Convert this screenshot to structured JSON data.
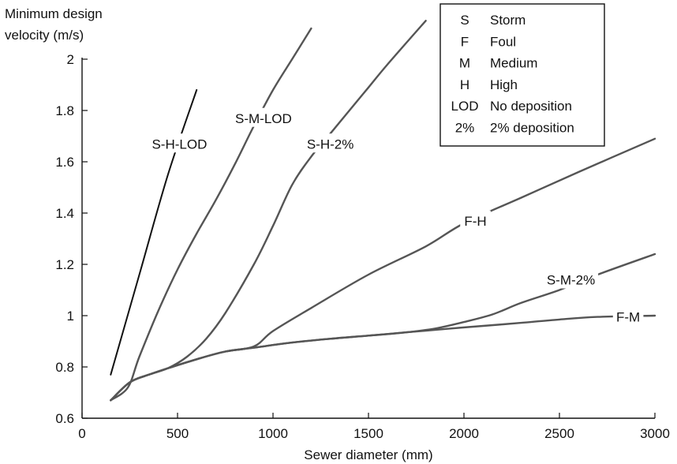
{
  "chart_data": {
    "type": "line",
    "title": "",
    "ylabel_lines": [
      "Minimum design",
      "velocity (m/s)"
    ],
    "xlabel": "Sewer diameter (mm)",
    "xlim": [
      0,
      3000
    ],
    "ylim": [
      0.6,
      2.0
    ],
    "x_ticks": [
      0,
      500,
      1000,
      1500,
      2000,
      2500,
      3000
    ],
    "y_ticks": [
      0.6,
      0.8,
      1,
      1.2,
      1.4,
      1.6,
      1.8,
      2
    ],
    "x_tick_labels": [
      "0",
      "500",
      "1000",
      "1500",
      "2000",
      "2500",
      "3000"
    ],
    "y_tick_labels": [
      "0.6",
      "0.8",
      "1",
      "1.2",
      "1.4",
      "1.6",
      "1.8",
      "2"
    ],
    "grid": false,
    "legend": {
      "position": "top-right",
      "entries": [
        {
          "code": "S",
          "meaning": "Storm"
        },
        {
          "code": "F",
          "meaning": "Foul"
        },
        {
          "code": "M",
          "meaning": "Medium"
        },
        {
          "code": "H",
          "meaning": "High"
        },
        {
          "code": "LOD",
          "meaning": "No deposition"
        },
        {
          "code": "2%",
          "meaning": "2% deposition"
        }
      ]
    },
    "series": [
      {
        "name": "S-H-LOD",
        "color": "#111111",
        "x": [
          150,
          300,
          450,
          600
        ],
        "y": [
          0.77,
          1.16,
          1.55,
          1.88
        ]
      },
      {
        "name": "S-M-LOD",
        "color": "#555555",
        "x": [
          150,
          240,
          300,
          400,
          500,
          600,
          700,
          800,
          900,
          1000,
          1100,
          1200
        ],
        "y": [
          0.67,
          0.72,
          0.84,
          1.02,
          1.18,
          1.32,
          1.45,
          1.59,
          1.74,
          1.88,
          2.0,
          2.12
        ]
      },
      {
        "name": "S-H-2%",
        "color": "#555555",
        "x": [
          150,
          250,
          350,
          450,
          550,
          650,
          750,
          900,
          1000,
          1100,
          1200,
          1300,
          1400,
          1500,
          1600,
          1800
        ],
        "y": [
          0.67,
          0.74,
          0.77,
          0.795,
          0.84,
          0.91,
          1.01,
          1.2,
          1.35,
          1.51,
          1.62,
          1.71,
          1.8,
          1.89,
          1.98,
          2.15
        ]
      },
      {
        "name": "F-H",
        "color": "#555555",
        "x": [
          150,
          250,
          350,
          450,
          600,
          750,
          900,
          1000,
          1200,
          1500,
          1800,
          2000,
          2300,
          2600,
          3000
        ],
        "y": [
          0.67,
          0.74,
          0.77,
          0.795,
          0.83,
          0.86,
          0.88,
          0.94,
          1.03,
          1.16,
          1.27,
          1.36,
          1.46,
          1.56,
          1.69
        ]
      },
      {
        "name": "S-M-2%",
        "color": "#555555",
        "x": [
          150,
          250,
          350,
          450,
          600,
          750,
          900,
          1100,
          1300,
          1500,
          1700,
          1850,
          2000,
          2150,
          2300,
          2500,
          2700,
          3000
        ],
        "y": [
          0.67,
          0.74,
          0.77,
          0.795,
          0.83,
          0.86,
          0.875,
          0.895,
          0.91,
          0.922,
          0.935,
          0.95,
          0.975,
          1.005,
          1.05,
          1.1,
          1.16,
          1.24
        ]
      },
      {
        "name": "F-M",
        "color": "#555555",
        "x": [
          150,
          250,
          350,
          450,
          600,
          750,
          900,
          1100,
          1300,
          1500,
          1700,
          1900,
          2100,
          2300,
          2500,
          2700,
          3000
        ],
        "y": [
          0.67,
          0.74,
          0.77,
          0.795,
          0.83,
          0.86,
          0.875,
          0.895,
          0.91,
          0.922,
          0.935,
          0.948,
          0.96,
          0.972,
          0.985,
          0.995,
          1.0
        ]
      }
    ],
    "curve_labels": [
      {
        "text": "S-H-LOD",
        "x": 510,
        "y": 1.67
      },
      {
        "text": "S-M-LOD",
        "x": 950,
        "y": 1.77
      },
      {
        "text": "S-H-2%",
        "x": 1300,
        "y": 1.67
      },
      {
        "text": "F-H",
        "x": 2060,
        "y": 1.37
      },
      {
        "text": "S-M-2%",
        "x": 2560,
        "y": 1.14
      },
      {
        "text": "F-M",
        "x": 2860,
        "y": 0.995
      }
    ]
  }
}
